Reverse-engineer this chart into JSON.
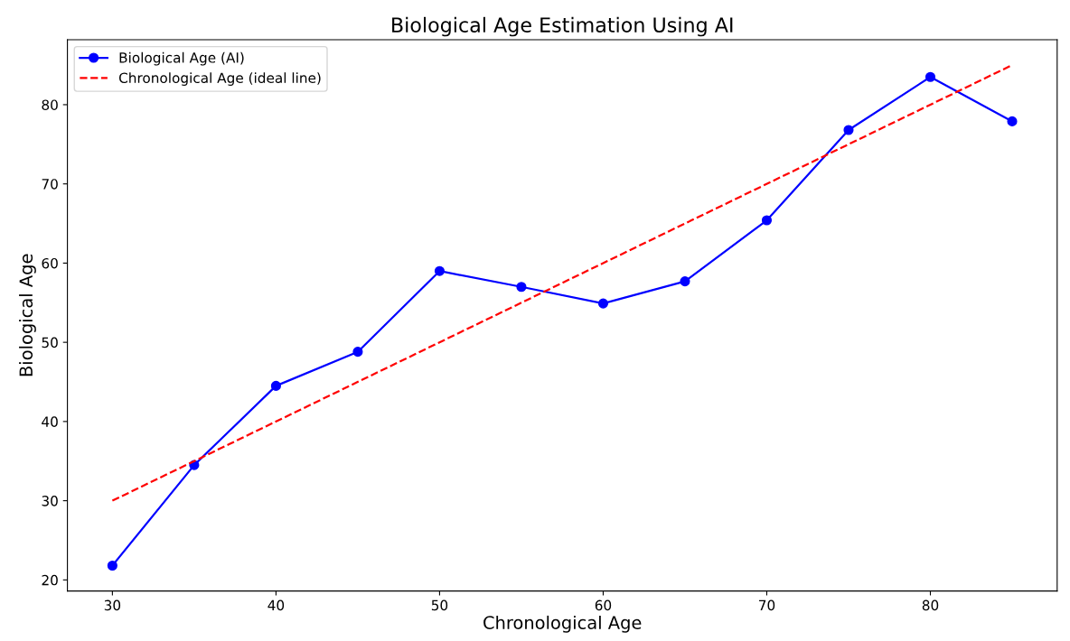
{
  "chart_data": {
    "type": "line",
    "title": "Biological Age Estimation Using AI",
    "xlabel": "Chronological Age",
    "ylabel": "Biological Age",
    "series": [
      {
        "name": "Biological Age (AI)",
        "color": "#0000ff",
        "x": [
          30,
          35,
          40,
          45,
          50,
          55,
          60,
          65,
          70,
          75,
          80,
          85
        ],
        "values": [
          21.8,
          34.5,
          44.5,
          48.8,
          59.0,
          57.0,
          54.9,
          57.7,
          65.4,
          76.8,
          83.5,
          77.9
        ],
        "marker": "circle",
        "line_style": "solid"
      },
      {
        "name": "Chronological Age (ideal line)",
        "color": "#ff0000",
        "x": [
          30,
          85
        ],
        "values": [
          30,
          85
        ],
        "marker": "none",
        "line_style": "dashed"
      }
    ],
    "xlim": [
      27.25,
      87.75
    ],
    "xticks": [
      30,
      40,
      50,
      60,
      70,
      80
    ],
    "ylim": [
      18.6,
      88.2
    ],
    "yticks": [
      20,
      30,
      40,
      50,
      60,
      70,
      80
    ],
    "grid": false,
    "legend": "top left"
  }
}
